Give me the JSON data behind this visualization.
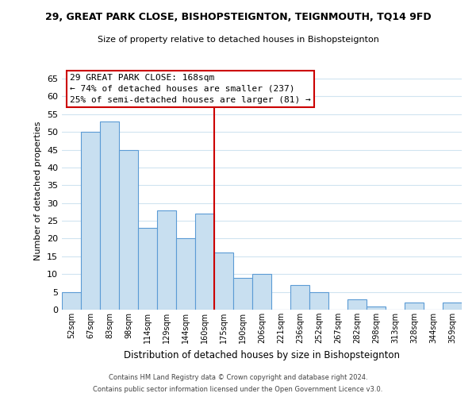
{
  "title": "29, GREAT PARK CLOSE, BISHOPSTEIGNTON, TEIGNMOUTH, TQ14 9FD",
  "subtitle": "Size of property relative to detached houses in Bishopsteignton",
  "xlabel": "Distribution of detached houses by size in Bishopsteignton",
  "ylabel": "Number of detached properties",
  "bar_labels": [
    "52sqm",
    "67sqm",
    "83sqm",
    "98sqm",
    "114sqm",
    "129sqm",
    "144sqm",
    "160sqm",
    "175sqm",
    "190sqm",
    "206sqm",
    "221sqm",
    "236sqm",
    "252sqm",
    "267sqm",
    "282sqm",
    "298sqm",
    "313sqm",
    "328sqm",
    "344sqm",
    "359sqm"
  ],
  "bar_values": [
    5,
    50,
    53,
    45,
    23,
    28,
    20,
    27,
    16,
    9,
    10,
    0,
    7,
    5,
    0,
    3,
    1,
    0,
    2,
    0,
    2
  ],
  "bar_color": "#c8dff0",
  "bar_edge_color": "#5b9bd5",
  "vline_x": 7.5,
  "vline_color": "#cc0000",
  "ylim": [
    0,
    67
  ],
  "yticks": [
    0,
    5,
    10,
    15,
    20,
    25,
    30,
    35,
    40,
    45,
    50,
    55,
    60,
    65
  ],
  "annotation_title": "29 GREAT PARK CLOSE: 168sqm",
  "annotation_line1": "← 74% of detached houses are smaller (237)",
  "annotation_line2": "25% of semi-detached houses are larger (81) →",
  "annotation_box_color": "#ffffff",
  "annotation_box_edge": "#cc0000",
  "footer1": "Contains HM Land Registry data © Crown copyright and database right 2024.",
  "footer2": "Contains public sector information licensed under the Open Government Licence v3.0.",
  "bg_color": "#ffffff",
  "grid_color": "#d0e4f0"
}
